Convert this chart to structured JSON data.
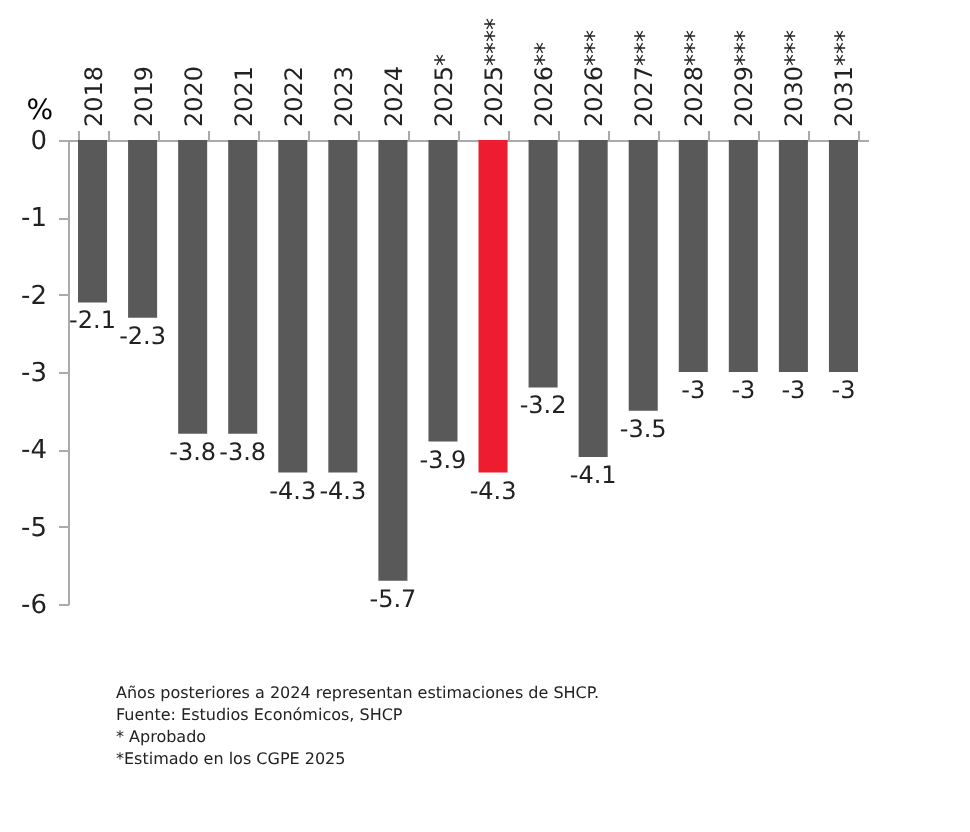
{
  "chart_data": {
    "type": "bar",
    "ylabel": "%",
    "categories": [
      "2018",
      "2019",
      "2020",
      "2021",
      "2022",
      "2023",
      "2024",
      "2025*",
      "2025****",
      "2026**",
      "2026***",
      "2027***",
      "2028***",
      "2029***",
      "2030***",
      "2031***"
    ],
    "values": [
      -2.1,
      -2.3,
      -3.8,
      -3.8,
      -4.3,
      -4.3,
      -5.7,
      -3.9,
      -4.3,
      -3.2,
      -4.1,
      -3.5,
      -3,
      -3,
      -3,
      -3
    ],
    "colors": [
      "#595959",
      "#595959",
      "#595959",
      "#595959",
      "#595959",
      "#595959",
      "#595959",
      "#595959",
      "#ed1c2e",
      "#595959",
      "#595959",
      "#595959",
      "#595959",
      "#595959",
      "#595959",
      "#595959"
    ],
    "ylim": [
      -6,
      0
    ],
    "yticks": [
      0,
      -1,
      -2,
      -3,
      -4,
      -5,
      -6
    ],
    "data_labels": true,
    "grid": false,
    "annotations": [
      "Años posteriores a 2024 representan estimaciones de SHCP.",
      "Fuente: Estudios Económicos, SHCP",
      "* Aprobado",
      "*Estimado en los CGPE 2025"
    ]
  }
}
